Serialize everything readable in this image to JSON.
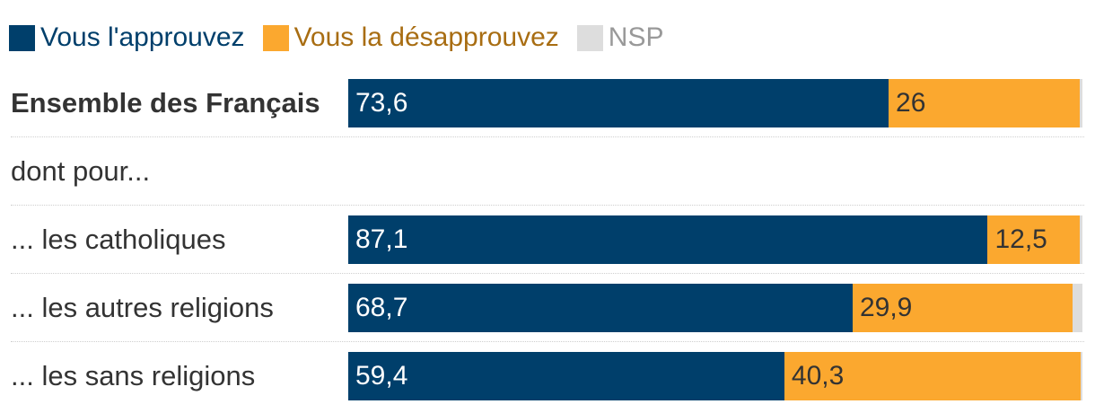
{
  "legend": [
    {
      "label": "Vous l'approuvez",
      "color": "#003f6b",
      "text_color": "#003f6b"
    },
    {
      "label": "Vous la désapprouvez",
      "color": "#fba82f",
      "text_color": "#a86d12"
    },
    {
      "label": "NSP",
      "color": "#dddddd",
      "text_color": "#999999"
    }
  ],
  "chart_data": {
    "type": "bar",
    "orientation": "horizontal",
    "stacked": true,
    "categories": [
      "Ensemble des Français",
      "dont pour...",
      "... les catholiques",
      "... les autres religions",
      "... les sans religions"
    ],
    "category_bold": [
      true,
      false,
      false,
      false,
      false
    ],
    "series": [
      {
        "name": "Vous l'approuvez",
        "values": [
          73.6,
          null,
          87.1,
          68.7,
          59.4
        ],
        "labels": [
          "73,6",
          "",
          "87,1",
          "68,7",
          "59,4"
        ],
        "color": "#003f6b",
        "label_color": "#ffffff"
      },
      {
        "name": "Vous la désapprouvez",
        "values": [
          26,
          null,
          12.5,
          29.9,
          40.3
        ],
        "labels": [
          "26",
          "",
          "12,5",
          "29,9",
          "40,3"
        ],
        "color": "#fba82f",
        "label_color": "#333333"
      },
      {
        "name": "NSP",
        "values": [
          0.4,
          null,
          0.4,
          1.4,
          0.3
        ],
        "labels": [
          "",
          "",
          "",
          "",
          ""
        ],
        "color": "#dddddd",
        "label_color": "#333333"
      }
    ],
    "xlim": [
      0,
      100
    ],
    "grid": false,
    "legend_position": "top-left"
  }
}
